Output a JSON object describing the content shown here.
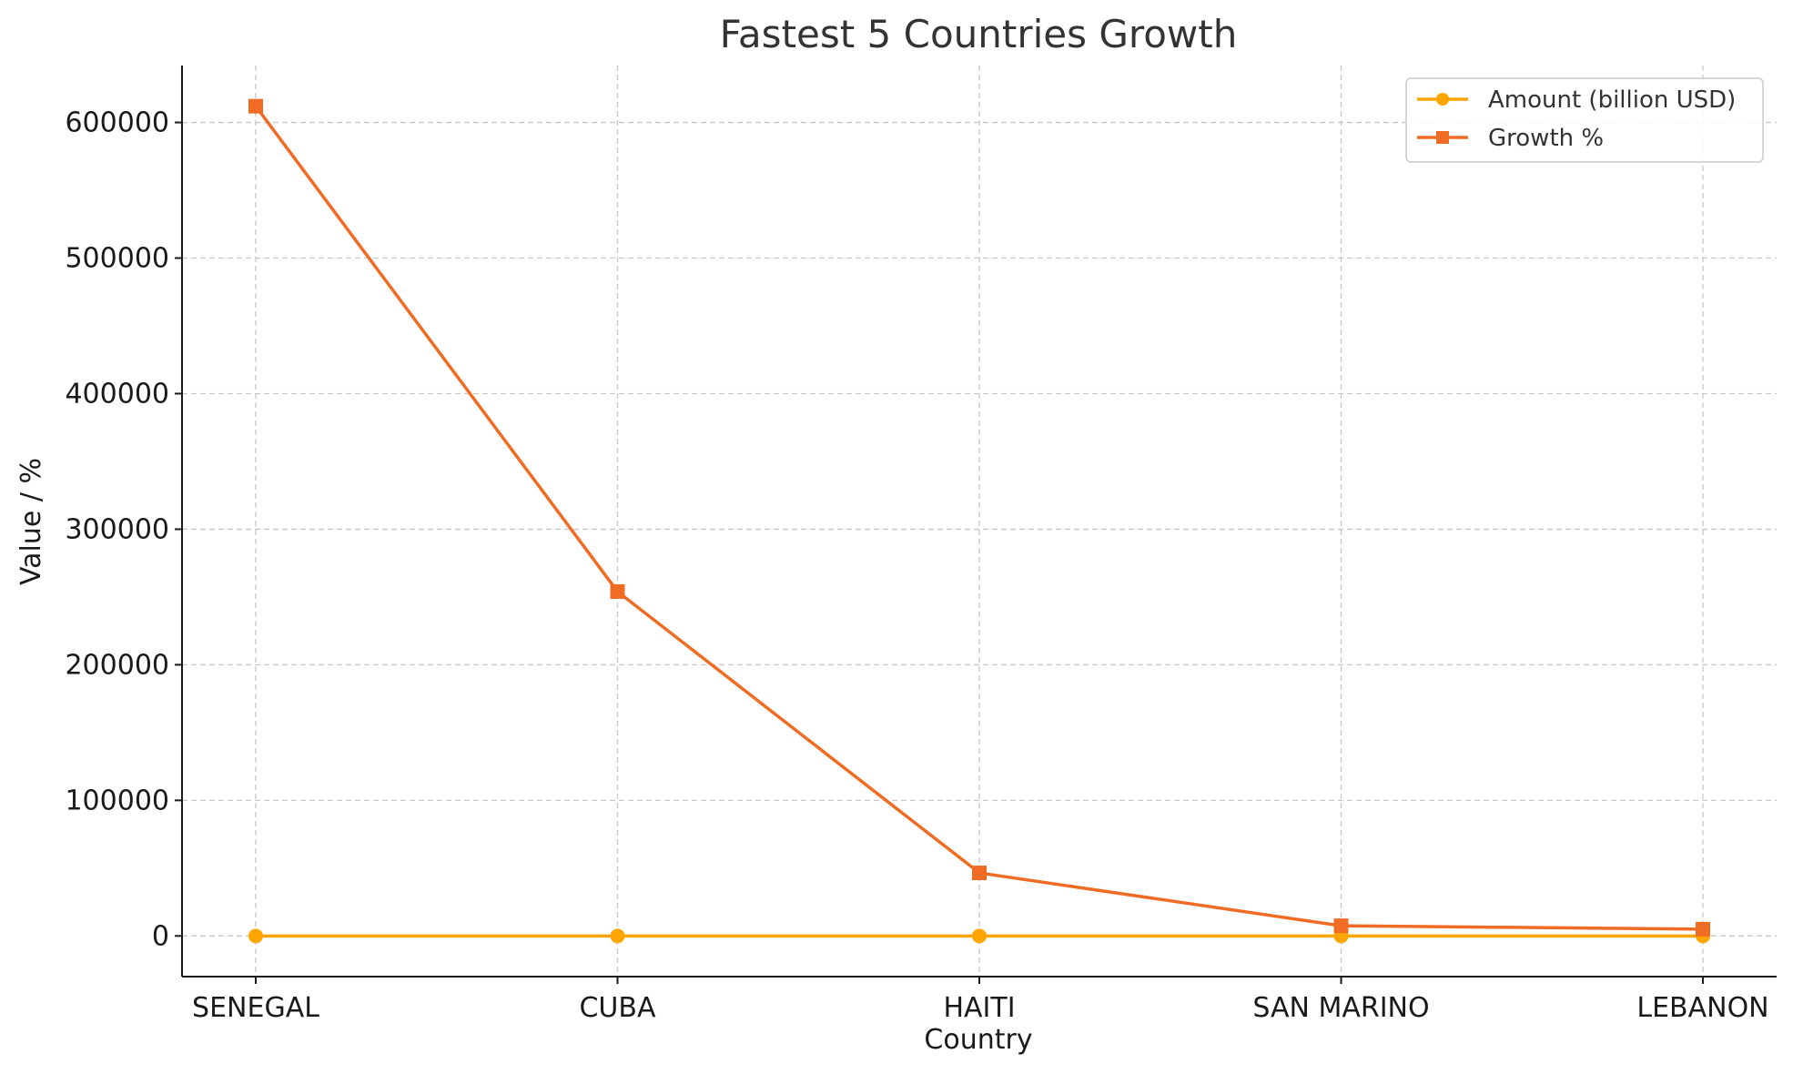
{
  "chart_data": {
    "type": "line",
    "title": "Fastest 5 Countries Growth",
    "xlabel": "Country",
    "ylabel": "Value / %",
    "categories": [
      "SENEGAL",
      "CUBA",
      "HAITI",
      "SAN MARINO",
      "LEBANON"
    ],
    "ylim": [
      -30000,
      642000
    ],
    "yticks": [
      0,
      100000,
      200000,
      300000,
      400000,
      500000,
      600000
    ],
    "grid": true,
    "legend_position": "top-right",
    "series": [
      {
        "name": "Amount (billion USD)",
        "color": "#FFA500",
        "marker": "circle",
        "values": [
          0,
          0,
          0,
          0,
          0
        ]
      },
      {
        "name": "Growth %",
        "color": "#F06C24",
        "marker": "square",
        "values": [
          612000,
          254000,
          46500,
          7500,
          5000
        ]
      }
    ]
  }
}
